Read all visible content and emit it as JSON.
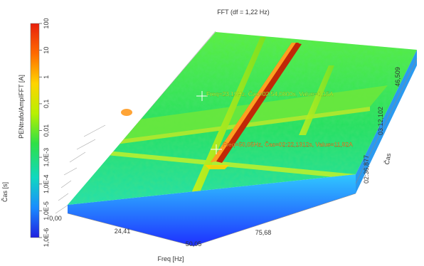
{
  "chart_data": {
    "type": "heatmap",
    "title": "FFT (df = 1,22 Hz)",
    "xlabel": "Freq [Hz]",
    "ylabel": "Čas [s]",
    "zlabel": "Čas",
    "colorbar_label": "PENtrafo/AmpIFFT [A]",
    "colorbar_scale": "log",
    "colorbar_ticks": [
      "100",
      "10",
      "1",
      "0,1",
      "0,01",
      "1,0E-3",
      "1,0E-4",
      "1,0E-5",
      "1,0E-6"
    ],
    "x_ticks": [
      "24,41",
      "50,05",
      "75,68"
    ],
    "y_ticks": [
      "0,00"
    ],
    "z_ticks": [
      "02:36,877",
      "03:12,102",
      "46,509"
    ],
    "peaks": [
      {
        "freq_hz": 50.05,
        "value_a": 11.92
      },
      {
        "freq_hz": 23.19,
        "value_a": 0.15
      }
    ],
    "annotations": [
      {
        "text": "Freq=23,19Hz, Čas=02:54,0800s, Value=0,15A",
        "color": "#c8ff3c"
      },
      {
        "text": "Freq=50,05Hz, Čas=02:22,1312s, Value=11,92A",
        "color": "#ffa040"
      }
    ],
    "colors": {
      "low": "#1f3cff",
      "floor": "#26e04a",
      "peak": "#e8400c",
      "annotation_green": "#c8ff3c",
      "annotation_orange": "#ffa040"
    }
  }
}
